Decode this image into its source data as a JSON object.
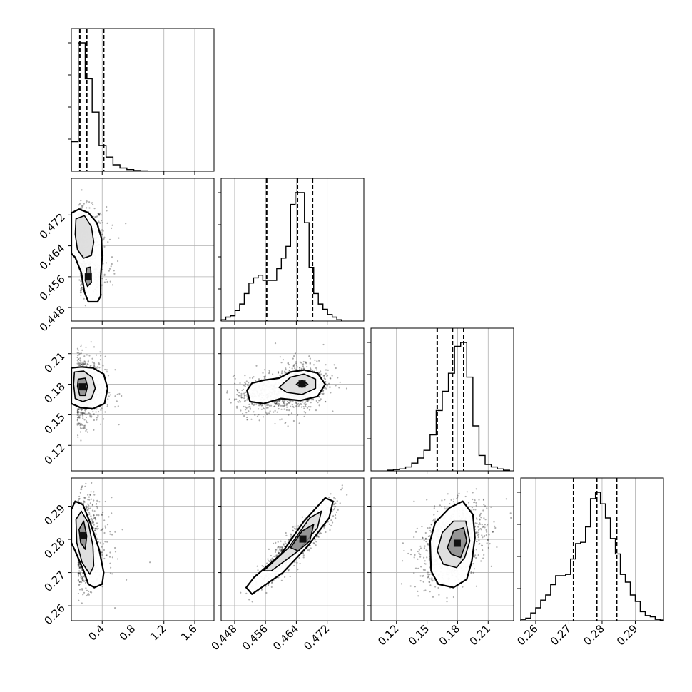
{
  "chart_data": {
    "type": "scatter",
    "variant": "corner-plot",
    "title": "",
    "grid": true,
    "colors": {
      "points": "#000000",
      "lines": "#000000",
      "grid": "#b0b0b0",
      "background": "#ffffff"
    },
    "parameters": [
      {
        "index": 0,
        "lim": [
          0.0,
          1.85
        ],
        "ticks": [
          0.4,
          0.8,
          1.2,
          1.6
        ],
        "tick_labels": [
          "0.4",
          "0.8",
          "1.2",
          "1.6"
        ]
      },
      {
        "index": 1,
        "lim": [
          0.4445,
          0.4815
        ],
        "ticks": [
          0.448,
          0.456,
          0.464,
          0.472
        ],
        "tick_labels": [
          "0.448",
          "0.456",
          "0.464",
          "0.472"
        ]
      },
      {
        "index": 2,
        "lim": [
          0.095,
          0.235
        ],
        "ticks": [
          0.12,
          0.15,
          0.18,
          0.21
        ],
        "tick_labels": [
          "0.12",
          "0.15",
          "0.18",
          "0.21"
        ]
      },
      {
        "index": 3,
        "lim": [
          0.2555,
          0.2985
        ],
        "ticks": [
          0.26,
          0.27,
          0.28,
          0.29
        ],
        "tick_labels": [
          "0.26",
          "0.27",
          "0.28",
          "0.29"
        ]
      }
    ],
    "histograms": [
      {
        "param": 0,
        "quantiles": [
          0.11,
          0.2,
          0.42
        ],
        "edges": [
          0.0,
          0.09,
          0.18,
          0.27,
          0.36,
          0.45,
          0.54,
          0.63,
          0.72,
          0.81,
          0.9,
          0.99,
          1.08
        ],
        "counts": [
          0.23,
          1.0,
          0.72,
          0.46,
          0.2,
          0.11,
          0.05,
          0.025,
          0.013,
          0.006,
          0.003,
          0.001
        ]
      },
      {
        "param": 1,
        "quantiles": [
          0.4563,
          0.4643,
          0.4682
        ],
        "edges": [
          0.4445,
          0.4457,
          0.4469,
          0.4481,
          0.4493,
          0.4505,
          0.4517,
          0.4529,
          0.4541,
          0.4553,
          0.4565,
          0.4577,
          0.4589,
          0.4601,
          0.4613,
          0.4625,
          0.4637,
          0.4649,
          0.4661,
          0.4673,
          0.4685,
          0.4697,
          0.4709,
          0.4721,
          0.4733,
          0.4745,
          0.4757
        ],
        "counts": [
          0.01,
          0.03,
          0.04,
          0.08,
          0.13,
          0.21,
          0.29,
          0.33,
          0.35,
          0.31,
          0.31,
          0.31,
          0.4,
          0.48,
          0.57,
          0.89,
          0.98,
          0.98,
          0.75,
          0.41,
          0.21,
          0.13,
          0.09,
          0.05,
          0.03,
          0.01
        ]
      },
      {
        "param": 2,
        "quantiles": [
          0.16,
          0.175,
          0.186
        ],
        "edges": [
          0.111,
          0.117,
          0.123,
          0.129,
          0.135,
          0.141,
          0.147,
          0.153,
          0.159,
          0.165,
          0.171,
          0.177,
          0.183,
          0.189,
          0.195,
          0.201,
          0.207,
          0.213,
          0.219,
          0.225,
          0.231
        ],
        "counts": [
          0.005,
          0.01,
          0.015,
          0.03,
          0.06,
          0.1,
          0.16,
          0.28,
          0.47,
          0.62,
          0.76,
          0.97,
          1.0,
          0.73,
          0.35,
          0.12,
          0.05,
          0.03,
          0.015,
          0.005
        ]
      },
      {
        "param": 3,
        "quantiles": [
          0.2714,
          0.2784,
          0.2844
        ],
        "edges": [
          0.2555,
          0.257,
          0.2585,
          0.26,
          0.2615,
          0.263,
          0.2645,
          0.266,
          0.2675,
          0.269,
          0.2705,
          0.272,
          0.2735,
          0.275,
          0.2765,
          0.278,
          0.2795,
          0.281,
          0.2825,
          0.284,
          0.2855,
          0.287,
          0.2885,
          0.29,
          0.2915,
          0.293,
          0.2945,
          0.296,
          0.2975,
          0.2985
        ],
        "counts": [
          0.01,
          0.02,
          0.06,
          0.1,
          0.16,
          0.2,
          0.28,
          0.35,
          0.35,
          0.36,
          0.48,
          0.6,
          0.61,
          0.73,
          0.95,
          1.0,
          0.91,
          0.8,
          0.64,
          0.52,
          0.36,
          0.3,
          0.2,
          0.15,
          0.07,
          0.04,
          0.03,
          0.01,
          0.005
        ]
      }
    ],
    "pairs": [
      {
        "x": 0,
        "y": 1,
        "points": 900,
        "components": [
          {
            "w": 0.7,
            "mx": 0.17,
            "my": 0.467,
            "sx": 0.09,
            "sy": 0.0035,
            "r": 0.0,
            "xskew": 0.28
          },
          {
            "w": 0.3,
            "mx": 0.2,
            "my": 0.4565,
            "sx": 0.09,
            "sy": 0.0028,
            "r": 0.0,
            "xskew": 0.28
          }
        ],
        "contours": [
          [
            [
              0.0,
              0.4725
            ],
            [
              0.1,
              0.4735
            ],
            [
              0.22,
              0.4726
            ],
            [
              0.33,
              0.47
            ],
            [
              0.39,
              0.466
            ],
            [
              0.4,
              0.461
            ],
            [
              0.38,
              0.456
            ],
            [
              0.38,
              0.451
            ],
            [
              0.34,
              0.4495
            ],
            [
              0.22,
              0.4495
            ],
            [
              0.17,
              0.452
            ],
            [
              0.13,
              0.457
            ],
            [
              0.05,
              0.461
            ],
            [
              0.0,
              0.462
            ]
          ],
          [
            [
              0.06,
              0.471
            ],
            [
              0.17,
              0.4718
            ],
            [
              0.26,
              0.469
            ],
            [
              0.29,
              0.465
            ],
            [
              0.26,
              0.4615
            ],
            [
              0.16,
              0.4608
            ],
            [
              0.08,
              0.463
            ],
            [
              0.05,
              0.467
            ]
          ],
          [
            [
              0.2,
              0.4583
            ],
            [
              0.25,
              0.4585
            ],
            [
              0.26,
              0.4545
            ],
            [
              0.21,
              0.4535
            ],
            [
              0.18,
              0.455
            ]
          ]
        ]
      },
      {
        "x": 0,
        "y": 2,
        "points": 900,
        "components": [
          {
            "w": 1.0,
            "mx": 0.16,
            "my": 0.175,
            "sx": 0.09,
            "sy": 0.016,
            "r": 0.0,
            "xskew": 0.28
          }
        ],
        "contours": [
          [
            [
              0.0,
              0.196
            ],
            [
              0.13,
              0.197
            ],
            [
              0.28,
              0.196
            ],
            [
              0.42,
              0.19
            ],
            [
              0.47,
              0.176
            ],
            [
              0.43,
              0.161
            ],
            [
              0.28,
              0.156
            ],
            [
              0.12,
              0.157
            ],
            [
              0.0,
              0.161
            ]
          ],
          [
            [
              0.04,
              0.192
            ],
            [
              0.16,
              0.193
            ],
            [
              0.27,
              0.187
            ],
            [
              0.31,
              0.176
            ],
            [
              0.26,
              0.166
            ],
            [
              0.15,
              0.163
            ],
            [
              0.05,
              0.166
            ],
            [
              0.03,
              0.18
            ]
          ],
          [
            [
              0.09,
              0.185
            ],
            [
              0.18,
              0.186
            ],
            [
              0.21,
              0.178
            ],
            [
              0.18,
              0.169
            ],
            [
              0.11,
              0.169
            ],
            [
              0.08,
              0.178
            ]
          ]
        ]
      },
      {
        "x": 1,
        "y": 2,
        "points": 1000,
        "components": [
          {
            "w": 0.45,
            "mx": 0.4655,
            "my": 0.18,
            "sx": 0.0035,
            "sy": 0.013,
            "r": 0.2,
            "xskew": 0
          },
          {
            "w": 0.55,
            "mx": 0.458,
            "my": 0.171,
            "sx": 0.005,
            "sy": 0.01,
            "r": 0.2,
            "xskew": 0
          }
        ],
        "contours": [
          [
            [
              0.4512,
              0.174
            ],
            [
              0.4525,
              0.181
            ],
            [
              0.4555,
              0.184
            ],
            [
              0.4595,
              0.186
            ],
            [
              0.4625,
              0.192
            ],
            [
              0.466,
              0.194
            ],
            [
              0.4695,
              0.191
            ],
            [
              0.4715,
              0.18
            ],
            [
              0.4695,
              0.168
            ],
            [
              0.465,
              0.164
            ],
            [
              0.46,
              0.166
            ],
            [
              0.4555,
              0.161
            ],
            [
              0.452,
              0.163
            ]
          ],
          [
            [
              0.4595,
              0.177
            ],
            [
              0.4625,
              0.187
            ],
            [
              0.466,
              0.19
            ],
            [
              0.469,
              0.185
            ],
            [
              0.469,
              0.176
            ],
            [
              0.4655,
              0.17
            ],
            [
              0.4615,
              0.172
            ]
          ],
          [
            [
              0.464,
              0.18
            ],
            [
              0.4655,
              0.184
            ],
            [
              0.467,
              0.18
            ],
            [
              0.4655,
              0.177
            ]
          ]
        ]
      },
      {
        "x": 0,
        "y": 3,
        "points": 900,
        "components": [
          {
            "w": 1.0,
            "mx": 0.17,
            "my": 0.279,
            "sx": 0.09,
            "sy": 0.0065,
            "r": 0.0,
            "xskew": 0.28
          }
        ],
        "contours": [
          [
            [
              0.0,
              0.289
            ],
            [
              0.05,
              0.2915
            ],
            [
              0.15,
              0.2905
            ],
            [
              0.26,
              0.284
            ],
            [
              0.36,
              0.277
            ],
            [
              0.42,
              0.27
            ],
            [
              0.4,
              0.2665
            ],
            [
              0.3,
              0.2655
            ],
            [
              0.22,
              0.2665
            ],
            [
              0.16,
              0.2705
            ],
            [
              0.05,
              0.2765
            ],
            [
              0.0,
              0.279
            ]
          ],
          [
            [
              0.06,
              0.286
            ],
            [
              0.13,
              0.2885
            ],
            [
              0.22,
              0.285
            ],
            [
              0.28,
              0.278
            ],
            [
              0.29,
              0.272
            ],
            [
              0.24,
              0.2695
            ],
            [
              0.14,
              0.273
            ],
            [
              0.07,
              0.279
            ]
          ],
          [
            [
              0.1,
              0.283
            ],
            [
              0.16,
              0.2855
            ],
            [
              0.2,
              0.281
            ],
            [
              0.18,
              0.277
            ],
            [
              0.12,
              0.279
            ]
          ]
        ]
      },
      {
        "x": 1,
        "y": 3,
        "points": 1000,
        "components": [
          {
            "w": 1.0,
            "mx": 0.464,
            "my": 0.2785,
            "sx": 0.0048,
            "sy": 0.006,
            "r": 0.92,
            "xskew": 0
          }
        ],
        "contours": [
          [
            [
              0.451,
              0.2655
            ],
            [
              0.453,
              0.2685
            ],
            [
              0.46,
              0.2755
            ],
            [
              0.466,
              0.2855
            ],
            [
              0.4715,
              0.2925
            ],
            [
              0.4735,
              0.2915
            ],
            [
              0.4725,
              0.2865
            ],
            [
              0.467,
              0.278
            ],
            [
              0.4605,
              0.27
            ],
            [
              0.4525,
              0.2635
            ]
          ],
          [
            [
              0.4555,
              0.2705
            ],
            [
              0.462,
              0.2775
            ],
            [
              0.4675,
              0.2865
            ],
            [
              0.4705,
              0.2885
            ],
            [
              0.4695,
              0.2835
            ],
            [
              0.4645,
              0.2765
            ],
            [
              0.4575,
              0.2705
            ]
          ],
          [
            [
              0.4625,
              0.2775
            ],
            [
              0.4655,
              0.2825
            ],
            [
              0.4685,
              0.2845
            ],
            [
              0.4675,
              0.2795
            ],
            [
              0.4645,
              0.2765
            ]
          ]
        ]
      },
      {
        "x": 2,
        "y": 3,
        "points": 1000,
        "components": [
          {
            "w": 1.0,
            "mx": 0.175,
            "my": 0.2785,
            "sx": 0.016,
            "sy": 0.006,
            "r": 0.35,
            "xskew": 0
          }
        ],
        "contours": [
          [
            [
              0.154,
              0.2705
            ],
            [
              0.153,
              0.2795
            ],
            [
              0.158,
              0.285
            ],
            [
              0.172,
              0.2895
            ],
            [
              0.185,
              0.2915
            ],
            [
              0.195,
              0.2875
            ],
            [
              0.197,
              0.2805
            ],
            [
              0.194,
              0.2735
            ],
            [
              0.189,
              0.268
            ],
            [
              0.176,
              0.2655
            ],
            [
              0.161,
              0.2665
            ]
          ],
          [
            [
              0.16,
              0.2765
            ],
            [
              0.165,
              0.282
            ],
            [
              0.176,
              0.2855
            ],
            [
              0.188,
              0.2855
            ],
            [
              0.192,
              0.2795
            ],
            [
              0.187,
              0.2745
            ],
            [
              0.179,
              0.2715
            ],
            [
              0.166,
              0.2725
            ]
          ],
          [
            [
              0.17,
              0.2775
            ],
            [
              0.176,
              0.2825
            ],
            [
              0.186,
              0.2835
            ],
            [
              0.189,
              0.2795
            ],
            [
              0.183,
              0.2745
            ],
            [
              0.174,
              0.2755
            ]
          ]
        ]
      }
    ]
  }
}
